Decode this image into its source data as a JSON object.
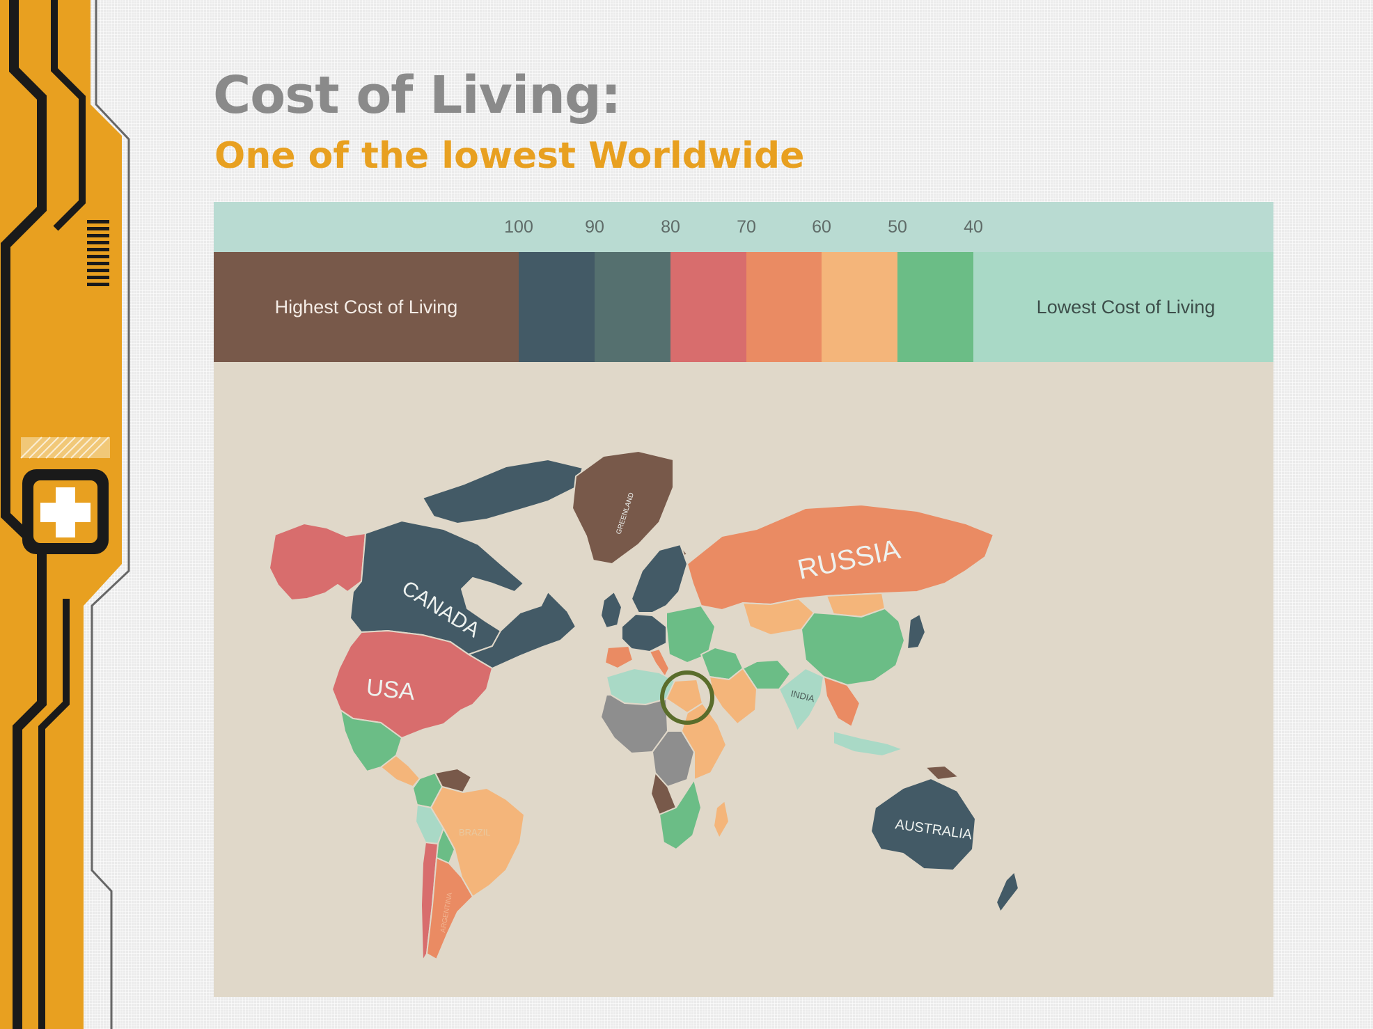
{
  "header": {
    "title": "Cost of Living:",
    "subtitle": "One of the lowest Worldwide"
  },
  "colors": {
    "sidebar_orange": "#e8a020",
    "sidebar_dark": "#1a1a1a",
    "title_gray": "#8a8a8a",
    "subtitle_orange": "#e8a020",
    "ocean": "#e0d8c9",
    "scale_strip": "#b9dbd2",
    "highlight_ring": "#5a6d2b"
  },
  "scale": {
    "ticks": [
      "100",
      "90",
      "80",
      "70",
      "60",
      "50",
      "40"
    ]
  },
  "legend": {
    "bands": [
      {
        "range": "above 100",
        "color": "#78594a"
      },
      {
        "range": "90-100",
        "color": "#435a66"
      },
      {
        "range": "80-90",
        "color": "#55706f"
      },
      {
        "range": "70-80",
        "color": "#d86d6d"
      },
      {
        "range": "60-70",
        "color": "#ea8b63"
      },
      {
        "range": "50-60",
        "color": "#f4b57a"
      },
      {
        "range": "40-50",
        "color": "#6bbd86"
      },
      {
        "range": "below 40",
        "color": "#a9d9c6"
      }
    ],
    "high_label": "Highest Cost of Living",
    "low_label": "Lowest Cost of Living"
  },
  "map": {
    "labels": {
      "canada": "CANADA",
      "usa": "USA",
      "russia": "RUSSIA",
      "greenland": "GREENLAND",
      "india": "INDIA",
      "australia": "AUSTRALIA",
      "brazil": "BRAZIL",
      "argentina": "ARGENTINA"
    },
    "regions": [
      {
        "name": "Alaska",
        "color": "#d86d6d"
      },
      {
        "name": "Canada",
        "color": "#435a66"
      },
      {
        "name": "Canadian Arctic Islands",
        "color": "#435a66"
      },
      {
        "name": "Eastern Canada",
        "color": "#435a66"
      },
      {
        "name": "Greenland",
        "color": "#78594a"
      },
      {
        "name": "Iceland",
        "color": "#78594a"
      },
      {
        "name": "USA",
        "color": "#d86d6d"
      },
      {
        "name": "Mexico",
        "color": "#6bbd86"
      },
      {
        "name": "Central America",
        "color": "#f4b57a"
      },
      {
        "name": "Venezuela",
        "color": "#78594a"
      },
      {
        "name": "Colombia",
        "color": "#6bbd86"
      },
      {
        "name": "Brazil",
        "color": "#f4b57a"
      },
      {
        "name": "Peru",
        "color": "#a9d9c6"
      },
      {
        "name": "Bolivia",
        "color": "#6bbd86"
      },
      {
        "name": "Argentina",
        "color": "#ea8b63"
      },
      {
        "name": "Chile",
        "color": "#d86d6d"
      },
      {
        "name": "Scandinavia",
        "color": "#435a66"
      },
      {
        "name": "United Kingdom",
        "color": "#435a66"
      },
      {
        "name": "Western Europe",
        "color": "#435a66"
      },
      {
        "name": "Spain",
        "color": "#ea8b63"
      },
      {
        "name": "Italy",
        "color": "#ea8b63"
      },
      {
        "name": "Eastern Europe",
        "color": "#6bbd86"
      },
      {
        "name": "Russia",
        "color": "#ea8b63"
      },
      {
        "name": "Kazakhstan",
        "color": "#f4b57a"
      },
      {
        "name": "Mongolia",
        "color": "#f4b57a"
      },
      {
        "name": "China",
        "color": "#6bbd86"
      },
      {
        "name": "Middle East",
        "color": "#6bbd86"
      },
      {
        "name": "Arabia",
        "color": "#f4b57a"
      },
      {
        "name": "Iran",
        "color": "#6bbd86"
      },
      {
        "name": "India",
        "color": "#a9d9c6"
      },
      {
        "name": "Southeast Asia",
        "color": "#ea8b63"
      },
      {
        "name": "Indonesia",
        "color": "#a9d9c6"
      },
      {
        "name": "Japan",
        "color": "#435a66"
      },
      {
        "name": "North Africa",
        "color": "#a9d9c6"
      },
      {
        "name": "Egypt",
        "color": "#f4b57a"
      },
      {
        "name": "West Africa",
        "color": "#8e8e8e"
      },
      {
        "name": "Central Africa",
        "color": "#8e8e8e"
      },
      {
        "name": "East Africa",
        "color": "#f4b57a"
      },
      {
        "name": "Angola",
        "color": "#78594a"
      },
      {
        "name": "Southern Africa",
        "color": "#6bbd86"
      },
      {
        "name": "Madagascar",
        "color": "#f4b57a"
      },
      {
        "name": "Australia",
        "color": "#435a66"
      },
      {
        "name": "New Zealand",
        "color": "#435a66"
      },
      {
        "name": "Papua New Guinea",
        "color": "#78594a"
      }
    ]
  }
}
